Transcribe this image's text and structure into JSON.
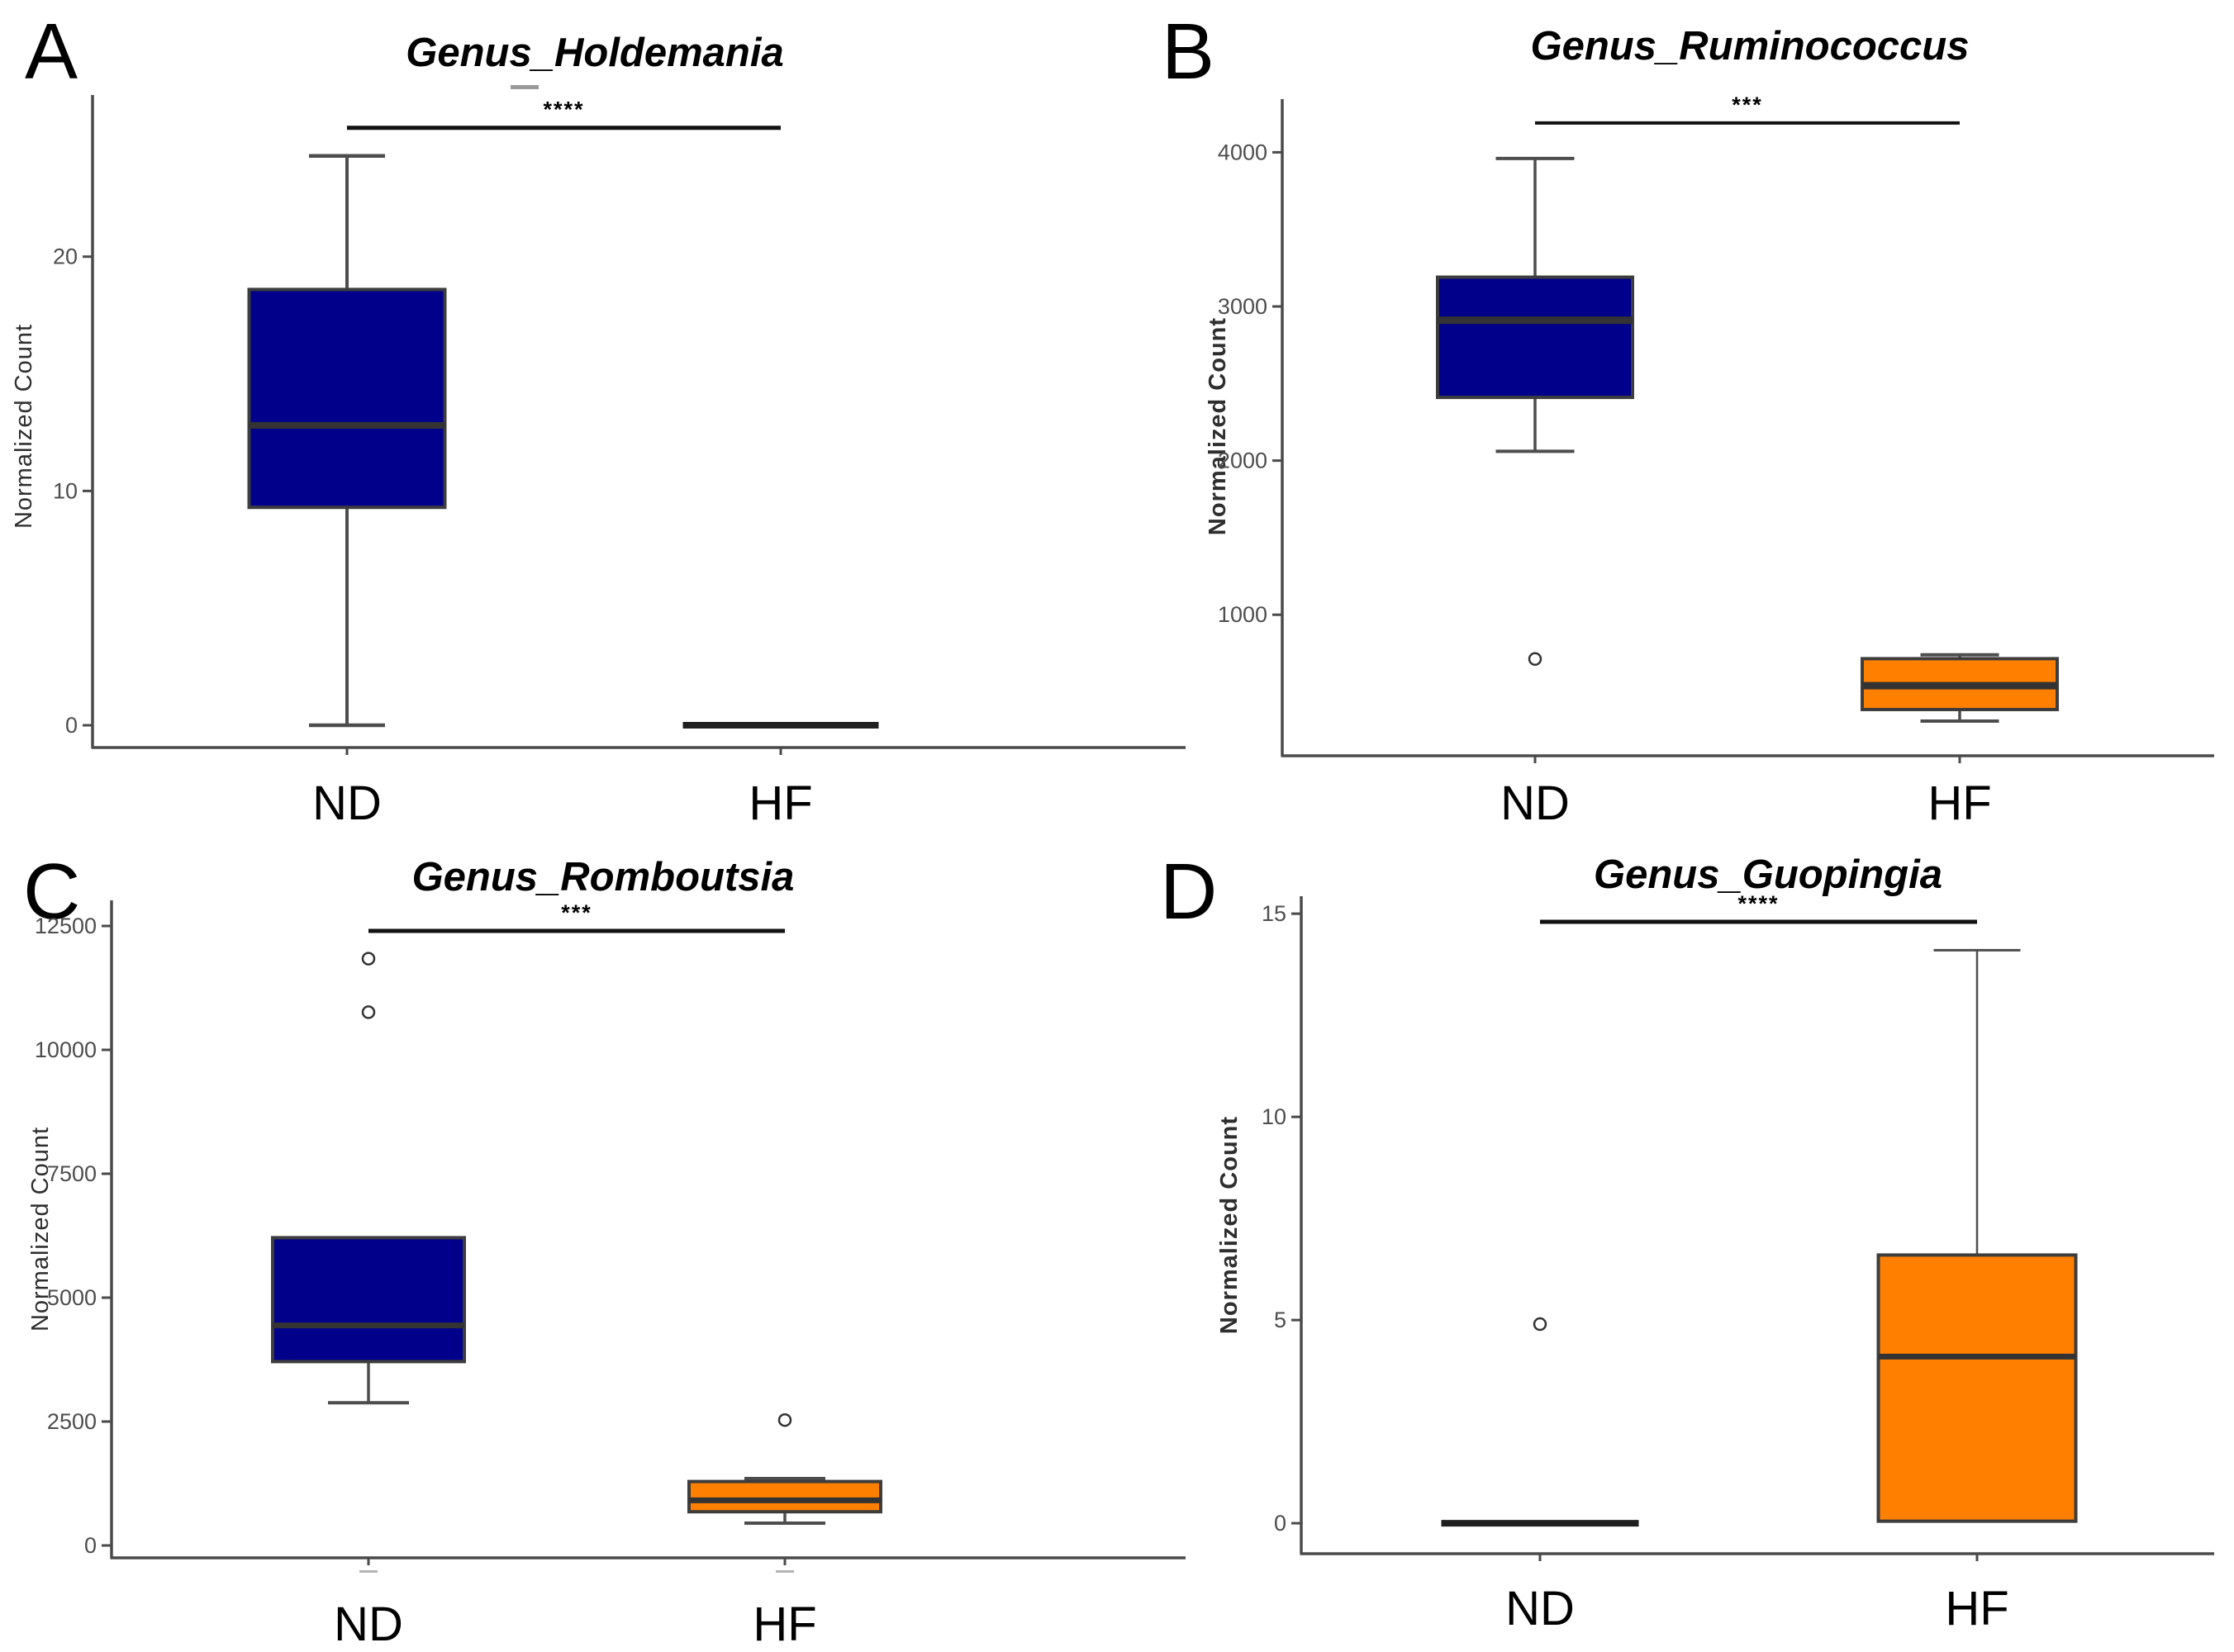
{
  "figure": {
    "background": "#ffffff",
    "colors": {
      "nd_box": "#00008B",
      "hf_box": "#FF7F00",
      "axis": "#4a4a4a",
      "tick_label": "#4d4d4d",
      "whisker": "#4d4d4d",
      "median": "#333333",
      "box_border": "#3d3d3d",
      "outlier_stroke": "#333333",
      "bracket": "#111111"
    }
  },
  "chart_data": [
    {
      "type": "box",
      "panel_label": "A",
      "title": "Genus_Holdemania",
      "ylabel": "Normalized Count",
      "x_categories": [
        "ND",
        "HF"
      ],
      "yticks": [
        0,
        10,
        20
      ],
      "ytick_labels": [
        "0",
        "10",
        "20"
      ],
      "ylim": [
        -0.95,
        26.9
      ],
      "grid": false,
      "significance": "****",
      "sig_bracket_y": 25.5,
      "groups": [
        {
          "name": "ND",
          "color": "#00008B",
          "q1": 9.3,
          "median": 12.8,
          "q3": 18.6,
          "whisker_low": 0,
          "whisker_high": 24.3,
          "outliers": []
        },
        {
          "name": "HF",
          "color": "#FF7F00",
          "flat_value": 0,
          "outliers": []
        }
      ]
    },
    {
      "type": "box",
      "panel_label": "B",
      "title": "Genus_Ruminococcus",
      "ylabel": "Normalized Count",
      "x_categories": [
        "ND",
        "HF"
      ],
      "yticks": [
        1000,
        2000,
        3000,
        4000
      ],
      "ytick_labels": [
        "1000",
        "2000",
        "3000",
        "4000"
      ],
      "ylim": [
        85,
        4345
      ],
      "grid": false,
      "significance": "***",
      "sig_bracket_y": 4190,
      "groups": [
        {
          "name": "ND",
          "color": "#00008B",
          "q1": 2410,
          "median": 2910,
          "q3": 3190,
          "whisker_low": 2060,
          "whisker_high": 3960,
          "outliers": [
            713
          ]
        },
        {
          "name": "HF",
          "color": "#FF7F00",
          "q1": 385,
          "median": 540,
          "q3": 715,
          "whisker_low": 310,
          "whisker_high": 740,
          "outliers": []
        }
      ]
    },
    {
      "type": "box",
      "panel_label": "C",
      "title": "Genus_Romboutsia",
      "ylabel": "Normalized Count",
      "x_categories": [
        "ND",
        "HF"
      ],
      "yticks": [
        0,
        2500,
        5000,
        7500,
        10000,
        12500
      ],
      "ytick_labels": [
        "0",
        "2500",
        "5000",
        "7500",
        "10000",
        "12500"
      ],
      "ylim": [
        -250,
        13017
      ],
      "grid": false,
      "significance": "***",
      "sig_bracket_y": 12400,
      "groups": [
        {
          "name": "ND",
          "color": "#00008B",
          "q1": 3710,
          "median": 4440,
          "q3": 6210,
          "whisker_low": 2880,
          "whisker_high": null,
          "outliers": [
            11840,
            10760
          ]
        },
        {
          "name": "HF",
          "color": "#FF7F00",
          "q1": 680,
          "median": 910,
          "q3": 1290,
          "whisker_low": 450,
          "whisker_high": 1350,
          "outliers": [
            2530
          ]
        }
      ]
    },
    {
      "type": "box",
      "panel_label": "D",
      "title": "Genus_Guopingia",
      "ylabel": "Normalized Count",
      "x_categories": [
        "ND",
        "HF"
      ],
      "yticks": [
        0,
        5,
        10,
        15
      ],
      "ytick_labels": [
        "0",
        "5",
        "10",
        "15"
      ],
      "ylim": [
        -0.75,
        15.43
      ],
      "grid": false,
      "significance": "****",
      "sig_bracket_y": 14.8,
      "groups": [
        {
          "name": "ND",
          "color": "#00008B",
          "flat_value": 0,
          "outliers": [
            4.9
          ]
        },
        {
          "name": "HF",
          "color": "#FF7F00",
          "q1": 0.05,
          "median": 4.1,
          "q3": 6.6,
          "whisker_low": null,
          "whisker_high": 14.1,
          "outliers": []
        }
      ]
    }
  ]
}
